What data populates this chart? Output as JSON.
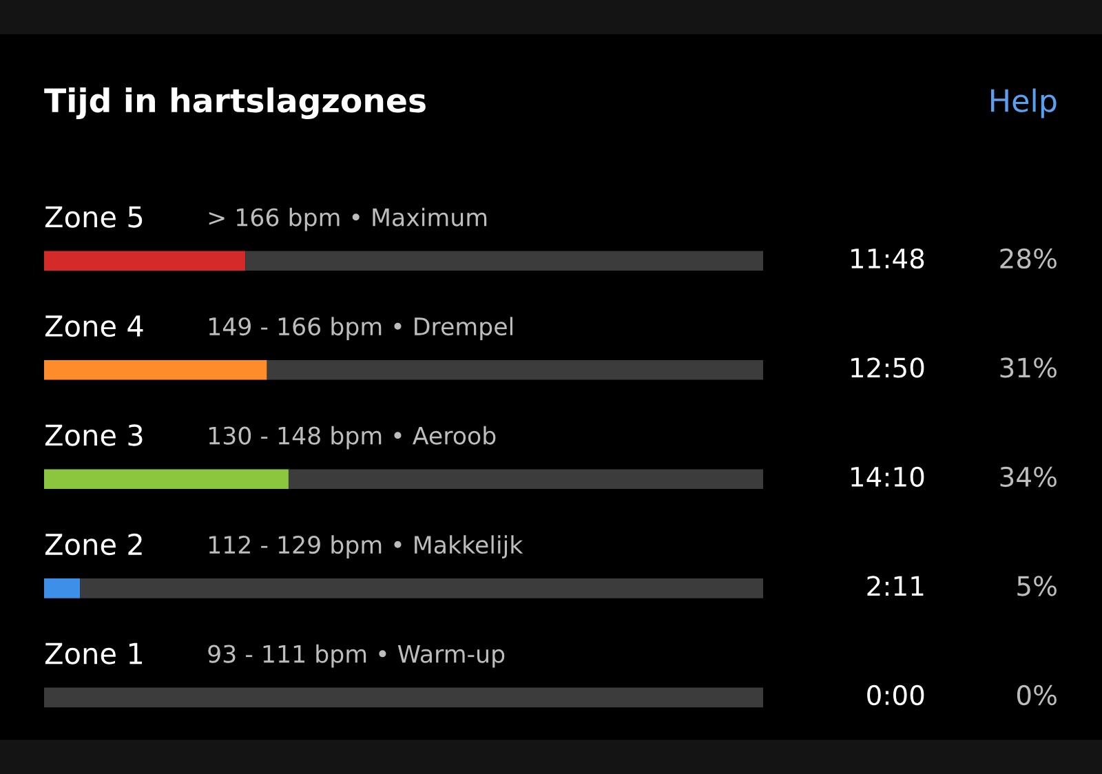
{
  "chart_data": {
    "type": "bar",
    "orientation": "horizontal",
    "stacked": true,
    "title": "Tijd in hartslagzones",
    "categories": [
      "Zone 5",
      "Zone 4",
      "Zone 3",
      "Zone 2",
      "Zone 1"
    ],
    "series": [
      {
        "colors": [
          "#d42a2a",
          "#ff8c2a",
          "#8cc63f",
          "#3d8fe8",
          "#d42a2a"
        ],
        "values": [
          28,
          31,
          34,
          5,
          0
        ],
        "value_labels": [
          "28%",
          "31%",
          "34%",
          "5%",
          "0%"
        ]
      },
      {
        "color": "#3c3c3c",
        "values": [
          72,
          69,
          66,
          95,
          100
        ]
      }
    ],
    "xlim": [
      0,
      100
    ],
    "annotations": [
      "Help",
      "> 166 bpm • Maximum",
      "149 - 166 bpm • Drempel",
      "130 - 148 bpm • Aeroob",
      "112 - 129 bpm • Makkelijk",
      "93 - 111 bpm • Warm-up",
      "11:48",
      "12:50",
      "14:10",
      "2:11",
      "0:00"
    ]
  }
}
